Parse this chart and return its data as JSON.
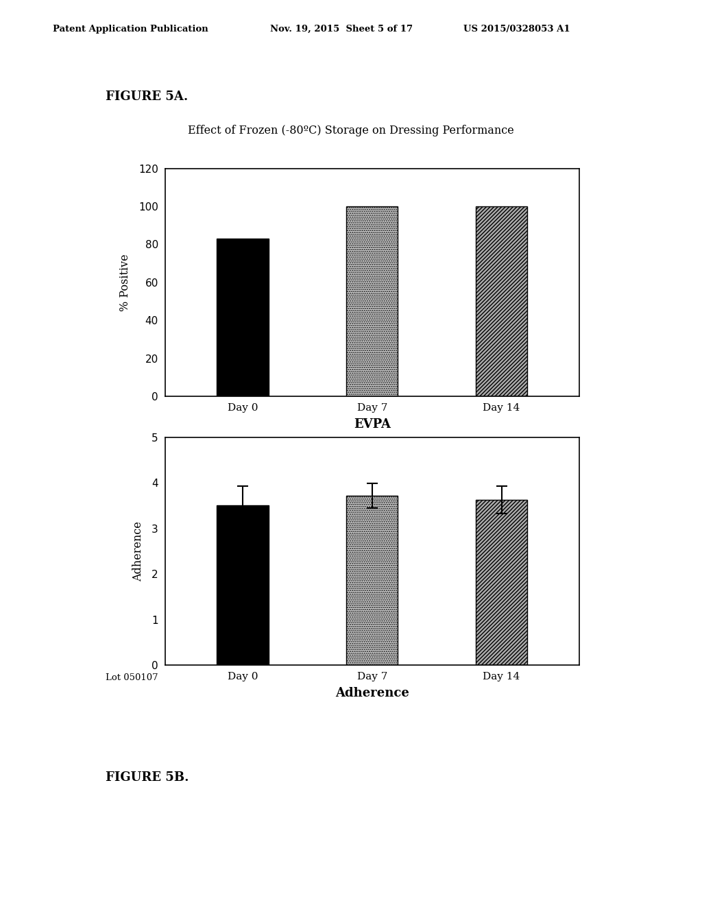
{
  "header_left": "Patent Application Publication",
  "header_mid": "Nov. 19, 2015  Sheet 5 of 17",
  "header_right": "US 2015/0328053 A1",
  "figure_label_top": "FIGURE 5A.",
  "figure_label_bottom": "FIGURE 5B.",
  "chart_title": "Effect of Frozen (-80ºC) Storage on Dressing Performance",
  "categories": [
    "Day 0",
    "Day 7",
    "Day 14"
  ],
  "top_chart": {
    "values": [
      83,
      100,
      100
    ],
    "ylabel": "% Positive",
    "xlabel": "EVPA",
    "ylim": [
      0,
      120
    ],
    "yticks": [
      0,
      20,
      40,
      60,
      80,
      100,
      120
    ]
  },
  "bottom_chart": {
    "values": [
      3.5,
      3.72,
      3.62
    ],
    "errors": [
      0.42,
      0.27,
      0.3
    ],
    "ylabel": "Adherence",
    "xlabel": "Adherence",
    "ylim": [
      0,
      5
    ],
    "yticks": [
      0,
      1,
      2,
      3,
      4,
      5
    ]
  },
  "lot_label": "Lot 050107",
  "background_color": "#ffffff"
}
